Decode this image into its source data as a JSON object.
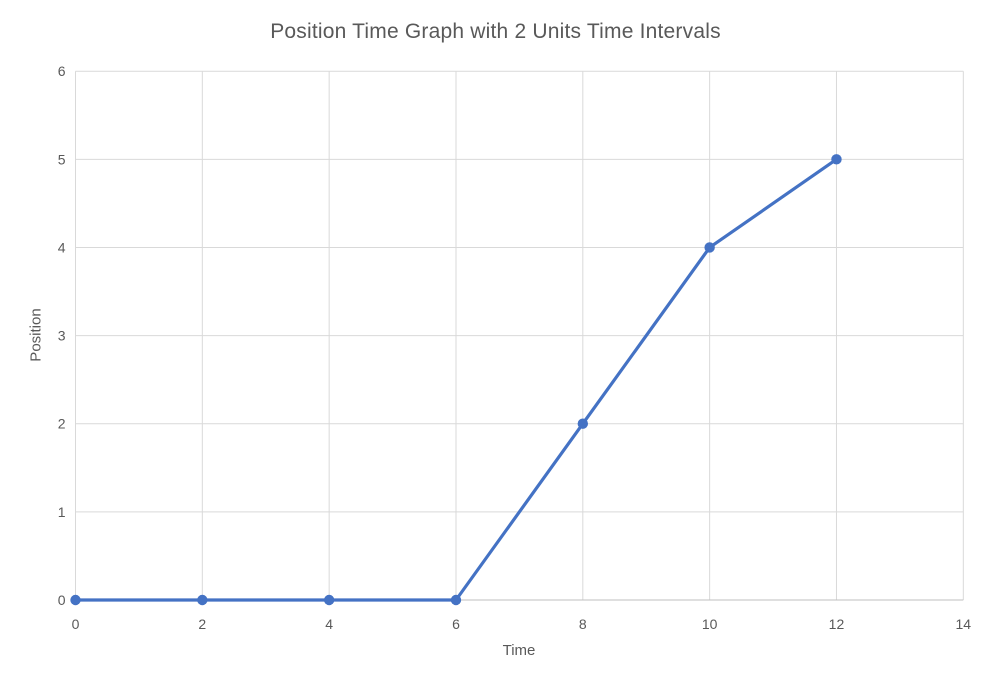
{
  "chart_data": {
    "type": "line",
    "title": "Position Time Graph with 2 Units Time Intervals",
    "xlabel": "Time",
    "ylabel": "Position",
    "x": [
      0,
      2,
      4,
      6,
      8,
      10,
      12
    ],
    "y": [
      0,
      0,
      0,
      0,
      2,
      4,
      5
    ],
    "xlim": [
      0,
      14
    ],
    "ylim": [
      0,
      6
    ],
    "xticks": [
      0,
      2,
      4,
      6,
      8,
      10,
      12,
      14
    ],
    "yticks": [
      0,
      1,
      2,
      3,
      4,
      5,
      6
    ],
    "grid": true,
    "legend_position": "none",
    "colors": {
      "series": "#4472C4",
      "gridline": "#D9D9D9",
      "axis_line": "#BFBFBF",
      "text": "#595959",
      "background": "#FFFFFF"
    }
  }
}
